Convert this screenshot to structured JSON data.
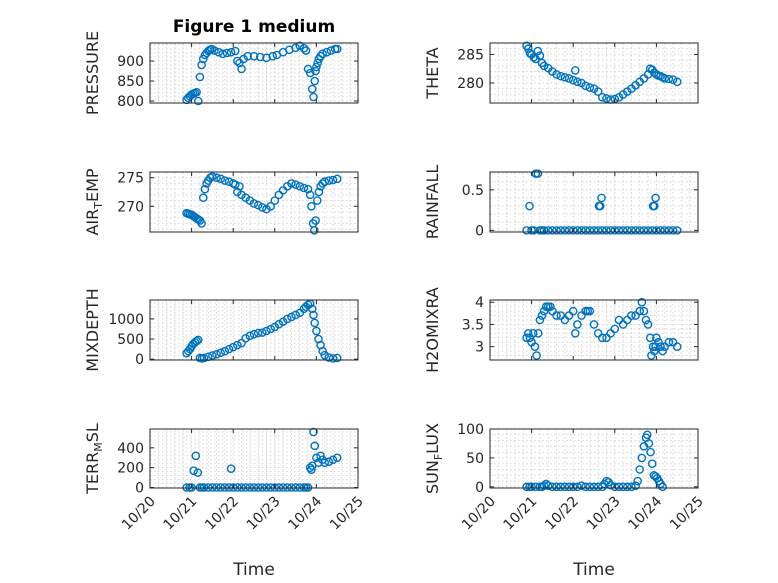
{
  "colors": {
    "marker": "#0072BD",
    "axis": "#262626",
    "grid": "#d4d4d4"
  },
  "chart_data": [
    {
      "type": "scatter",
      "title": "Figure 1 medium",
      "ylabel": "PRESSURE",
      "xlabel": "",
      "xlim": [
        0,
        5
      ],
      "ylim": [
        795,
        945
      ],
      "yticks": [
        800,
        850,
        900
      ],
      "show_xticklabels": false,
      "grid": "on",
      "x": [
        0.88,
        0.92,
        0.96,
        1.0,
        1.04,
        1.08,
        1.12,
        1.16,
        1.2,
        1.24,
        1.28,
        1.32,
        1.36,
        1.4,
        1.44,
        1.48,
        1.55,
        1.65,
        1.75,
        1.85,
        1.95,
        2.05,
        2.1,
        2.15,
        2.2,
        2.25,
        2.35,
        2.5,
        2.65,
        2.8,
        2.95,
        3.05,
        3.2,
        3.35,
        3.5,
        3.6,
        3.7,
        3.75,
        3.8,
        3.85,
        3.9,
        3.93,
        3.96,
        3.98,
        4.0,
        4.03,
        4.06,
        4.1,
        4.15,
        4.25,
        4.35,
        4.45,
        4.5
      ],
      "y": [
        803,
        808,
        812,
        816,
        818,
        820,
        822,
        800,
        860,
        890,
        905,
        915,
        920,
        925,
        928,
        930,
        926,
        922,
        918,
        920,
        922,
        925,
        900,
        895,
        880,
        905,
        912,
        912,
        910,
        908,
        912,
        915,
        922,
        928,
        933,
        938,
        932,
        926,
        880,
        870,
        830,
        810,
        850,
        875,
        885,
        895,
        905,
        912,
        918,
        922,
        926,
        930,
        930
      ]
    },
    {
      "type": "scatter",
      "title": "",
      "ylabel": "THETA",
      "xlabel": "",
      "xlim": [
        0,
        5
      ],
      "ylim": [
        276.5,
        287
      ],
      "yticks": [
        280,
        285
      ],
      "show_xticklabels": false,
      "grid": "on",
      "x": [
        0.88,
        0.92,
        0.96,
        1.0,
        1.05,
        1.1,
        1.15,
        1.2,
        1.25,
        1.3,
        1.4,
        1.5,
        1.6,
        1.7,
        1.8,
        1.9,
        2.0,
        2.05,
        2.1,
        2.2,
        2.3,
        2.4,
        2.5,
        2.6,
        2.7,
        2.8,
        2.9,
        3.0,
        3.1,
        3.2,
        3.3,
        3.4,
        3.5,
        3.6,
        3.7,
        3.8,
        3.85,
        3.9,
        3.95,
        4.0,
        4.05,
        4.1,
        4.15,
        4.2,
        4.3,
        4.4,
        4.5
      ],
      "y": [
        286.5,
        286.0,
        285.2,
        285.0,
        284.5,
        284.2,
        285.6,
        284.8,
        283.5,
        283.0,
        282.6,
        282.0,
        281.5,
        281.2,
        281.0,
        280.8,
        280.5,
        282.2,
        280.2,
        280.0,
        279.5,
        279.2,
        279.0,
        278.5,
        277.5,
        277.3,
        277.1,
        277.2,
        277.5,
        278.0,
        278.5,
        279.0,
        279.6,
        280.2,
        280.8,
        281.5,
        282.5,
        282.3,
        281.8,
        281.5,
        281.3,
        281.2,
        281.0,
        280.8,
        280.7,
        280.6,
        280.2
      ]
    },
    {
      "type": "scatter",
      "title": "",
      "ylabel": "AIR_TEMP",
      "xlabel": "",
      "xlim": [
        0,
        5
      ],
      "ylim": [
        265.5,
        276
      ],
      "yticks": [
        270,
        275
      ],
      "show_xticklabels": false,
      "grid": "on",
      "x": [
        0.88,
        0.92,
        0.96,
        1.0,
        1.04,
        1.08,
        1.12,
        1.16,
        1.2,
        1.24,
        1.28,
        1.32,
        1.36,
        1.4,
        1.45,
        1.5,
        1.6,
        1.7,
        1.8,
        1.9,
        2.0,
        2.05,
        2.1,
        2.15,
        2.2,
        2.3,
        2.4,
        2.5,
        2.6,
        2.7,
        2.8,
        2.9,
        3.0,
        3.1,
        3.2,
        3.3,
        3.4,
        3.5,
        3.6,
        3.7,
        3.8,
        3.85,
        3.88,
        3.92,
        3.95,
        3.98,
        4.02,
        4.06,
        4.1,
        4.15,
        4.2,
        4.3,
        4.4,
        4.5
      ],
      "y": [
        268.8,
        268.7,
        268.6,
        268.5,
        268.3,
        268.1,
        267.9,
        267.7,
        267.5,
        267.0,
        271.5,
        273.0,
        274.0,
        274.5,
        275.0,
        275.2,
        275.0,
        274.8,
        274.5,
        274.3,
        274.0,
        273.8,
        272.5,
        273.5,
        272.0,
        271.5,
        271.0,
        270.5,
        270.2,
        269.8,
        269.5,
        270.0,
        271.0,
        272.0,
        272.8,
        273.5,
        274.0,
        273.8,
        273.5,
        273.2,
        273.0,
        272.0,
        270.0,
        267.0,
        265.8,
        267.5,
        271.0,
        272.5,
        273.5,
        274.0,
        274.3,
        274.5,
        274.6,
        274.8
      ]
    },
    {
      "type": "scatter",
      "title": "",
      "ylabel": "RAINFALL",
      "xlabel": "",
      "xlim": [
        0,
        5
      ],
      "ylim": [
        -0.02,
        0.72
      ],
      "yticks": [
        0,
        0.5
      ],
      "show_xticklabels": false,
      "grid": "on",
      "x": [
        0.88,
        0.95,
        1.0,
        1.05,
        1.1,
        1.15,
        1.2,
        1.25,
        1.3,
        1.4,
        1.5,
        1.6,
        1.7,
        1.8,
        1.9,
        2.0,
        2.1,
        2.2,
        2.3,
        2.4,
        2.5,
        2.6,
        2.62,
        2.65,
        2.68,
        2.7,
        2.8,
        2.9,
        3.0,
        3.1,
        3.2,
        3.3,
        3.4,
        3.5,
        3.6,
        3.7,
        3.8,
        3.9,
        3.92,
        3.95,
        3.98,
        4.0,
        4.1,
        4.2,
        4.3,
        4.4,
        4.5
      ],
      "y": [
        0,
        0.3,
        0,
        0,
        0.7,
        0.7,
        0,
        0,
        0,
        0,
        0,
        0,
        0,
        0,
        0,
        0,
        0,
        0,
        0,
        0,
        0,
        0,
        0.3,
        0.3,
        0.4,
        0,
        0,
        0,
        0,
        0,
        0,
        0,
        0,
        0,
        0,
        0,
        0,
        0,
        0.3,
        0.3,
        0.4,
        0,
        0,
        0,
        0,
        0,
        0
      ]
    },
    {
      "type": "scatter",
      "title": "",
      "ylabel": "MIXDEPTH",
      "xlabel": "",
      "xlim": [
        0,
        5
      ],
      "ylim": [
        -20,
        1470
      ],
      "yticks": [
        0,
        500,
        1000
      ],
      "show_xticklabels": false,
      "grid": "on",
      "x": [
        0.88,
        0.92,
        0.96,
        1.0,
        1.04,
        1.08,
        1.12,
        1.16,
        1.2,
        1.25,
        1.3,
        1.4,
        1.5,
        1.6,
        1.7,
        1.8,
        1.9,
        2.0,
        2.1,
        2.2,
        2.3,
        2.4,
        2.5,
        2.6,
        2.7,
        2.8,
        2.9,
        3.0,
        3.1,
        3.2,
        3.3,
        3.4,
        3.5,
        3.6,
        3.7,
        3.75,
        3.8,
        3.85,
        3.9,
        3.93,
        3.96,
        4.0,
        4.05,
        4.1,
        4.15,
        4.2,
        4.3,
        4.4,
        4.5
      ],
      "y": [
        150,
        200,
        250,
        320,
        380,
        420,
        450,
        480,
        30,
        20,
        30,
        60,
        90,
        120,
        160,
        200,
        250,
        300,
        350,
        400,
        520,
        580,
        620,
        650,
        660,
        700,
        750,
        800,
        870,
        930,
        1000,
        1050,
        1100,
        1150,
        1250,
        1300,
        1350,
        1380,
        1250,
        1100,
        900,
        700,
        500,
        350,
        200,
        100,
        40,
        20,
        30
      ]
    },
    {
      "type": "scatter",
      "title": "",
      "ylabel": "H2OMIXRA",
      "xlabel": "",
      "xlim": [
        0,
        5
      ],
      "ylim": [
        2.7,
        4.05
      ],
      "yticks": [
        3,
        3.5,
        4
      ],
      "show_xticklabels": false,
      "grid": "on",
      "x": [
        0.88,
        0.92,
        0.96,
        1.0,
        1.04,
        1.08,
        1.12,
        1.16,
        1.2,
        1.25,
        1.3,
        1.35,
        1.4,
        1.45,
        1.5,
        1.6,
        1.7,
        1.8,
        1.9,
        2.0,
        2.05,
        2.1,
        2.2,
        2.3,
        2.35,
        2.4,
        2.5,
        2.6,
        2.7,
        2.8,
        2.9,
        3.0,
        3.1,
        3.2,
        3.3,
        3.4,
        3.5,
        3.6,
        3.65,
        3.7,
        3.75,
        3.8,
        3.85,
        3.88,
        3.92,
        3.95,
        3.98,
        4.0,
        4.05,
        4.1,
        4.15,
        4.2,
        4.3,
        4.4,
        4.5
      ],
      "y": [
        3.2,
        3.3,
        3.2,
        3.1,
        3.3,
        3.0,
        2.8,
        3.3,
        3.6,
        3.7,
        3.8,
        3.9,
        3.9,
        3.9,
        3.8,
        3.7,
        3.7,
        3.6,
        3.7,
        3.8,
        3.3,
        3.5,
        3.7,
        3.8,
        3.8,
        3.8,
        3.5,
        3.3,
        3.2,
        3.2,
        3.3,
        3.4,
        3.6,
        3.5,
        3.6,
        3.7,
        3.7,
        3.8,
        4.0,
        3.8,
        3.6,
        3.5,
        3.2,
        2.8,
        3.0,
        2.9,
        3.0,
        3.2,
        3.1,
        3.0,
        2.9,
        3.0,
        3.1,
        3.1,
        3.0
      ]
    },
    {
      "type": "scatter",
      "title": "",
      "ylabel": "TERR_MSL",
      "xlabel": "Time",
      "xlim": [
        0,
        5
      ],
      "ylim": [
        -5,
        590
      ],
      "yticks": [
        0,
        200,
        400
      ],
      "show_xticklabels": true,
      "grid": "on",
      "x": [
        0.88,
        0.95,
        1.0,
        1.05,
        1.1,
        1.15,
        1.2,
        1.25,
        1.3,
        1.4,
        1.5,
        1.6,
        1.7,
        1.8,
        1.9,
        1.95,
        2.0,
        2.1,
        2.2,
        2.3,
        2.4,
        2.5,
        2.6,
        2.7,
        2.8,
        2.9,
        3.0,
        3.1,
        3.2,
        3.3,
        3.4,
        3.5,
        3.6,
        3.7,
        3.75,
        3.8,
        3.85,
        3.88,
        3.9,
        3.93,
        3.96,
        4.0,
        4.05,
        4.1,
        4.15,
        4.2,
        4.3,
        4.4,
        4.5
      ],
      "y": [
        0,
        0,
        0,
        170,
        320,
        150,
        0,
        0,
        0,
        0,
        0,
        0,
        0,
        0,
        0,
        190,
        0,
        0,
        0,
        0,
        0,
        0,
        0,
        0,
        0,
        0,
        0,
        0,
        0,
        0,
        0,
        0,
        0,
        0,
        0,
        0,
        200,
        180,
        220,
        560,
        420,
        300,
        250,
        320,
        280,
        250,
        260,
        280,
        300
      ]
    },
    {
      "type": "scatter",
      "title": "",
      "ylabel": "SUN_FLUX",
      "xlabel": "Time",
      "xlim": [
        0,
        5
      ],
      "ylim": [
        -2,
        100
      ],
      "yticks": [
        0,
        50,
        100
      ],
      "show_xticklabels": true,
      "grid": "on",
      "x": [
        0.88,
        0.95,
        1.0,
        1.1,
        1.2,
        1.25,
        1.3,
        1.35,
        1.4,
        1.5,
        1.6,
        1.7,
        1.8,
        1.9,
        2.0,
        2.1,
        2.2,
        2.3,
        2.4,
        2.5,
        2.6,
        2.7,
        2.75,
        2.8,
        2.85,
        2.9,
        3.0,
        3.1,
        3.2,
        3.3,
        3.4,
        3.5,
        3.55,
        3.6,
        3.65,
        3.7,
        3.75,
        3.78,
        3.82,
        3.86,
        3.9,
        3.94,
        3.98,
        4.02,
        4.06,
        4.1,
        4.15
      ],
      "y": [
        0,
        0,
        0,
        0,
        0,
        0,
        2,
        5,
        2,
        0,
        0,
        0,
        0,
        0,
        0,
        0,
        2,
        0,
        0,
        0,
        0,
        0,
        5,
        10,
        8,
        3,
        0,
        0,
        0,
        0,
        0,
        2,
        10,
        30,
        50,
        70,
        85,
        90,
        75,
        60,
        40,
        20,
        18,
        15,
        10,
        5,
        0
      ]
    }
  ],
  "x_axis": {
    "ticks": [
      0,
      1,
      2,
      3,
      4,
      5
    ],
    "tick_labels": [
      "10/20",
      "10/21",
      "10/22",
      "10/23",
      "10/24",
      "10/25"
    ]
  }
}
